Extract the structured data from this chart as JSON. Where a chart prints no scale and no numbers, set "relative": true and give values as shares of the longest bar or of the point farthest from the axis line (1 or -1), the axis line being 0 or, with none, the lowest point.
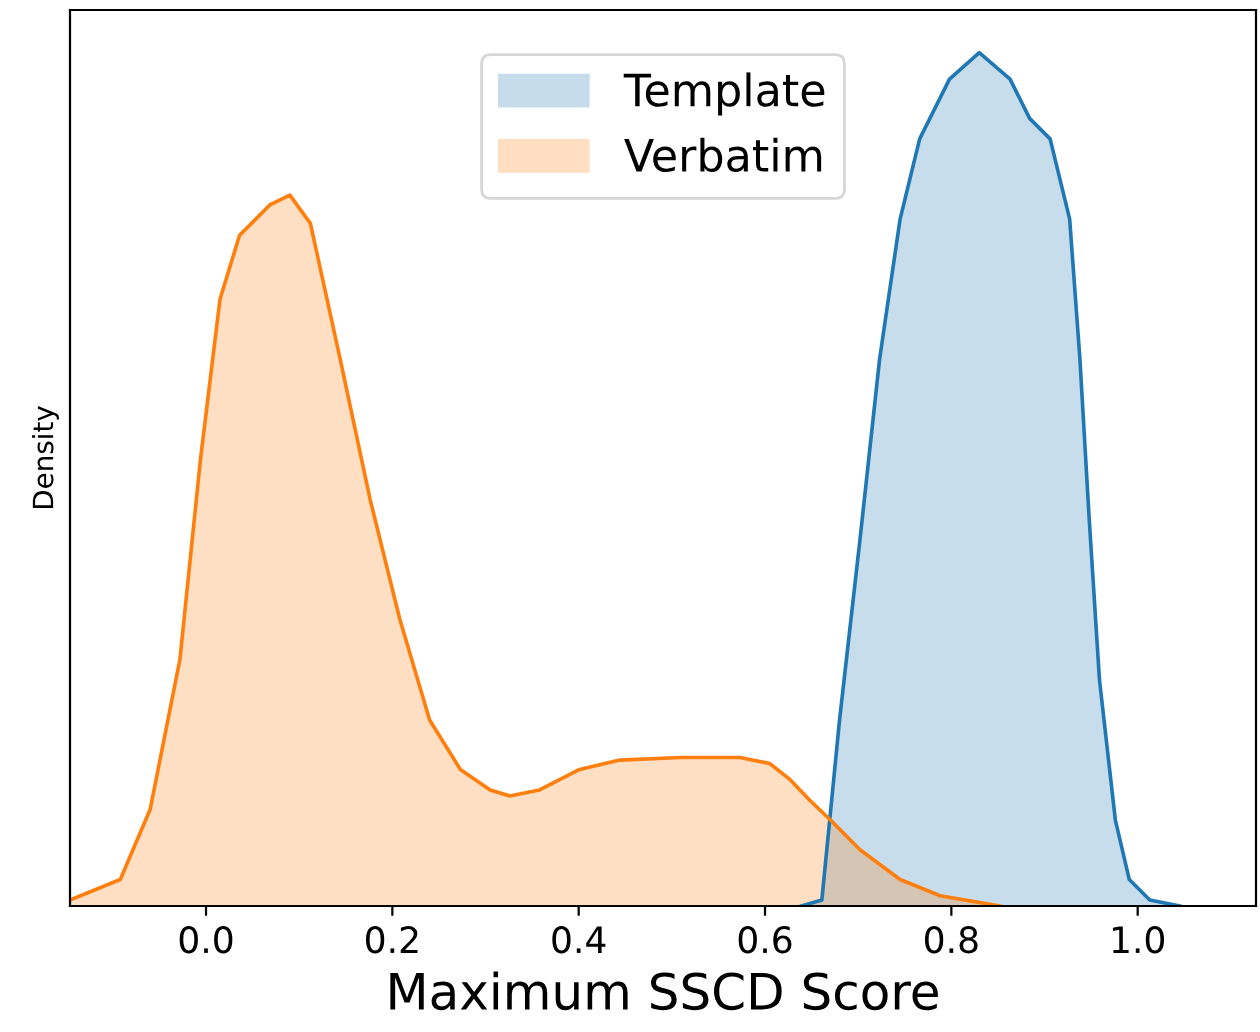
{
  "chart_data": {
    "type": "area",
    "relative": true,
    "xlabel": "Maximum SSCD Score",
    "ylabel": "Density",
    "xlim": [
      -0.146,
      1.127
    ],
    "xticks": [
      {
        "value": 0,
        "label": "0.0"
      },
      0.2,
      0.4,
      0.6,
      0.8,
      {
        "value": 1,
        "label": "1.0"
      }
    ],
    "tick_labels": "x",
    "legend": "top",
    "grid": false,
    "series": [
      {
        "name": "Template",
        "color": "#1f77b4",
        "x": [
          0.639,
          0.661,
          0.68,
          0.702,
          0.723,
          0.745,
          0.766,
          0.798,
          0.83,
          0.863,
          0.884,
          0.906,
          0.927,
          0.938,
          0.948,
          0.959,
          0.976,
          0.991,
          1.013,
          1.045
        ],
        "values": [
          0,
          0.007,
          0.218,
          0.43,
          0.641,
          0.805,
          0.899,
          0.969,
          1.0,
          0.969,
          0.923,
          0.899,
          0.805,
          0.641,
          0.453,
          0.265,
          0.101,
          0.031,
          0.007,
          0
        ]
      },
      {
        "name": "Verbatim",
        "color": "#ff7f0e",
        "x": [
          -0.146,
          -0.092,
          -0.06,
          -0.028,
          -0.006,
          0.015,
          0.036,
          0.069,
          0.09,
          0.112,
          0.144,
          0.176,
          0.208,
          0.24,
          0.273,
          0.305,
          0.326,
          0.358,
          0.401,
          0.444,
          0.509,
          0.573,
          0.605,
          0.627,
          0.648,
          0.67,
          0.702,
          0.745,
          0.788,
          0.852
        ],
        "values": [
          0.007,
          0.031,
          0.113,
          0.289,
          0.523,
          0.711,
          0.786,
          0.822,
          0.833,
          0.8,
          0.641,
          0.477,
          0.336,
          0.218,
          0.16,
          0.136,
          0.129,
          0.136,
          0.16,
          0.171,
          0.174,
          0.174,
          0.167,
          0.148,
          0.124,
          0.101,
          0.066,
          0.031,
          0.012,
          0
        ]
      }
    ]
  }
}
